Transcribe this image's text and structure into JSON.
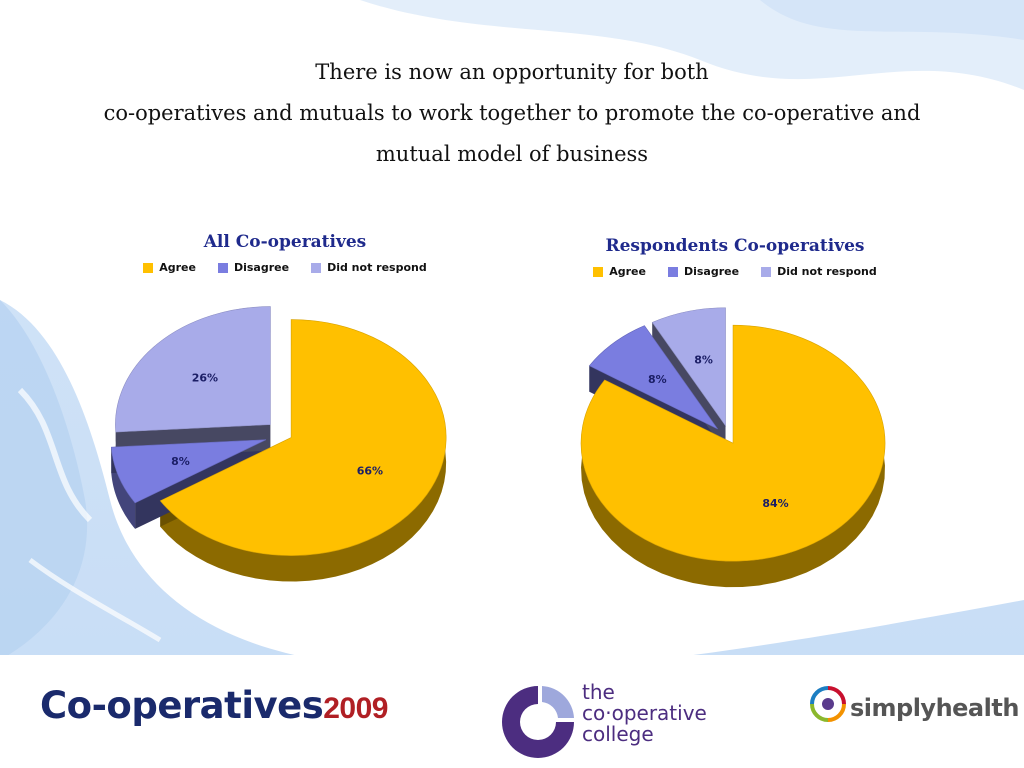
{
  "slide": {
    "title_lines": [
      "There is now an opportunity for both",
      "co-operatives and mutuals to work together to promote the co-operative and",
      "mutual model of business"
    ]
  },
  "colors": {
    "agree": "#ffc000",
    "disagree": "#7a7de0",
    "no_response": "#a8abe9",
    "chart_title": "#1f2a8c",
    "label": "#1b1e66"
  },
  "chart_data": [
    {
      "type": "pie",
      "title": "All Co-operatives",
      "legend": [
        "Agree",
        "Disagree",
        "Did not respond"
      ],
      "legend_position": "top",
      "series": [
        {
          "values": [
            66,
            8,
            26
          ]
        }
      ],
      "data_labels": [
        "66%",
        "8%",
        "26%"
      ],
      "exploded": true,
      "style": "3d"
    },
    {
      "type": "pie",
      "title": "Respondents Co-operatives",
      "legend": [
        "Agree",
        "Disagree",
        "Did not respond"
      ],
      "legend_position": "top",
      "series": [
        {
          "values": [
            84,
            8,
            8
          ]
        }
      ],
      "data_labels": [
        "84%",
        "8%",
        "8%"
      ],
      "exploded": true,
      "style": "3d"
    }
  ],
  "logos": {
    "coop_text": "Co-operatives",
    "coop_year": "2009",
    "college_lines": [
      "the",
      "co·operative",
      "college"
    ],
    "simply": "simplyhealth"
  }
}
